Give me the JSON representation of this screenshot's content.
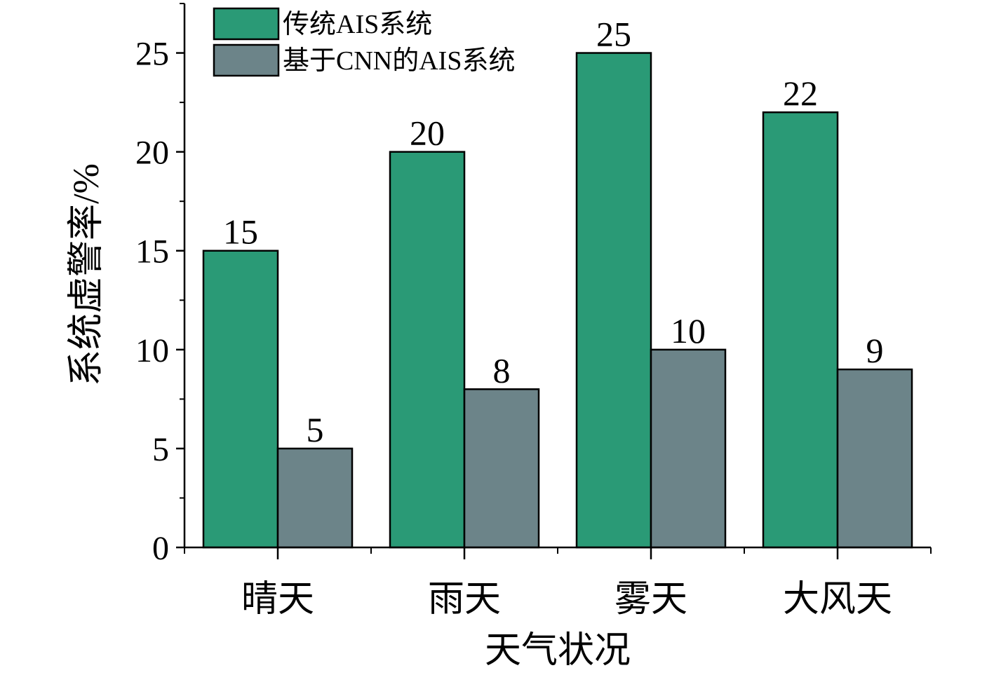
{
  "chart_data": {
    "type": "bar",
    "categories": [
      "晴天",
      "雨天",
      "雾天",
      "大风天"
    ],
    "series": [
      {
        "name": "传统AIS系统",
        "values": [
          15,
          20,
          25,
          22
        ],
        "color": "#2a9a76"
      },
      {
        "name": "基于CNN的AIS系统",
        "values": [
          5,
          8,
          10,
          9
        ],
        "color": "#6c8489"
      }
    ],
    "xlabel": "天气状况",
    "ylabel": "系统虚警率/%",
    "ylim": [
      0,
      27.5
    ],
    "yticks": [
      0,
      5,
      10,
      15,
      20,
      25
    ],
    "legend": "top-left",
    "grid": false
  }
}
